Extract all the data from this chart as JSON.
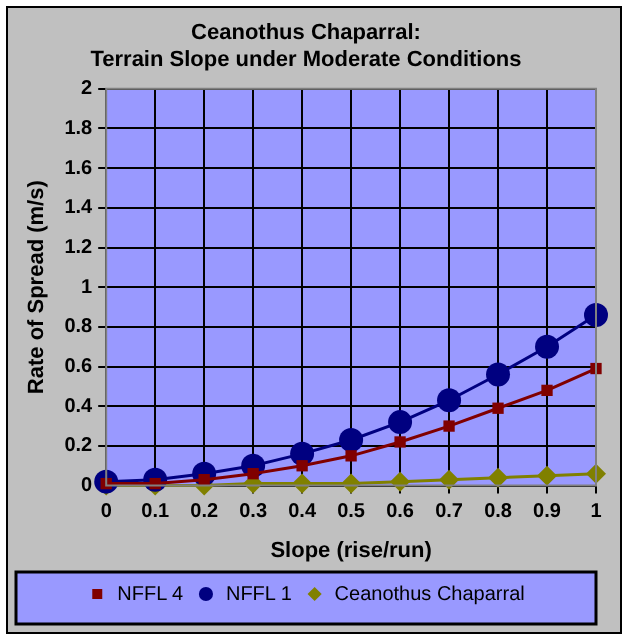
{
  "chart_data": {
    "type": "line",
    "title": [
      "Ceanothus Chaparral:",
      "Terrain Slope under Moderate Conditions"
    ],
    "xlabel": "Slope (rise/run)",
    "ylabel": "Rate of Spread (m/s)",
    "categories": [
      "0",
      "0.1",
      "0.2",
      "0.3",
      "0.4",
      "0.5",
      "0.6",
      "0.7",
      "0.8",
      "0.9",
      "1"
    ],
    "ylim": [
      0,
      2
    ],
    "yticks": [
      0,
      0.2,
      0.4,
      0.6,
      0.8,
      1,
      1.2,
      1.4,
      1.6,
      1.8,
      2
    ],
    "grid": true,
    "legend": "bottom",
    "series": [
      {
        "name": "NFFL 4",
        "color": "#800000",
        "marker": "square",
        "values": [
          0.01,
          0.01,
          0.03,
          0.06,
          0.1,
          0.15,
          0.22,
          0.3,
          0.39,
          0.48,
          0.59
        ]
      },
      {
        "name": "NFFL 1",
        "color": "#000080",
        "marker": "circle",
        "values": [
          0.02,
          0.03,
          0.06,
          0.1,
          0.16,
          0.23,
          0.32,
          0.43,
          0.56,
          0.7,
          0.86
        ]
      },
      {
        "name": "Ceanothus Chaparral",
        "color": "#808000",
        "marker": "diamond",
        "values": [
          0,
          0,
          0,
          0.01,
          0.01,
          0.01,
          0.02,
          0.03,
          0.04,
          0.05,
          0.06
        ]
      }
    ]
  }
}
